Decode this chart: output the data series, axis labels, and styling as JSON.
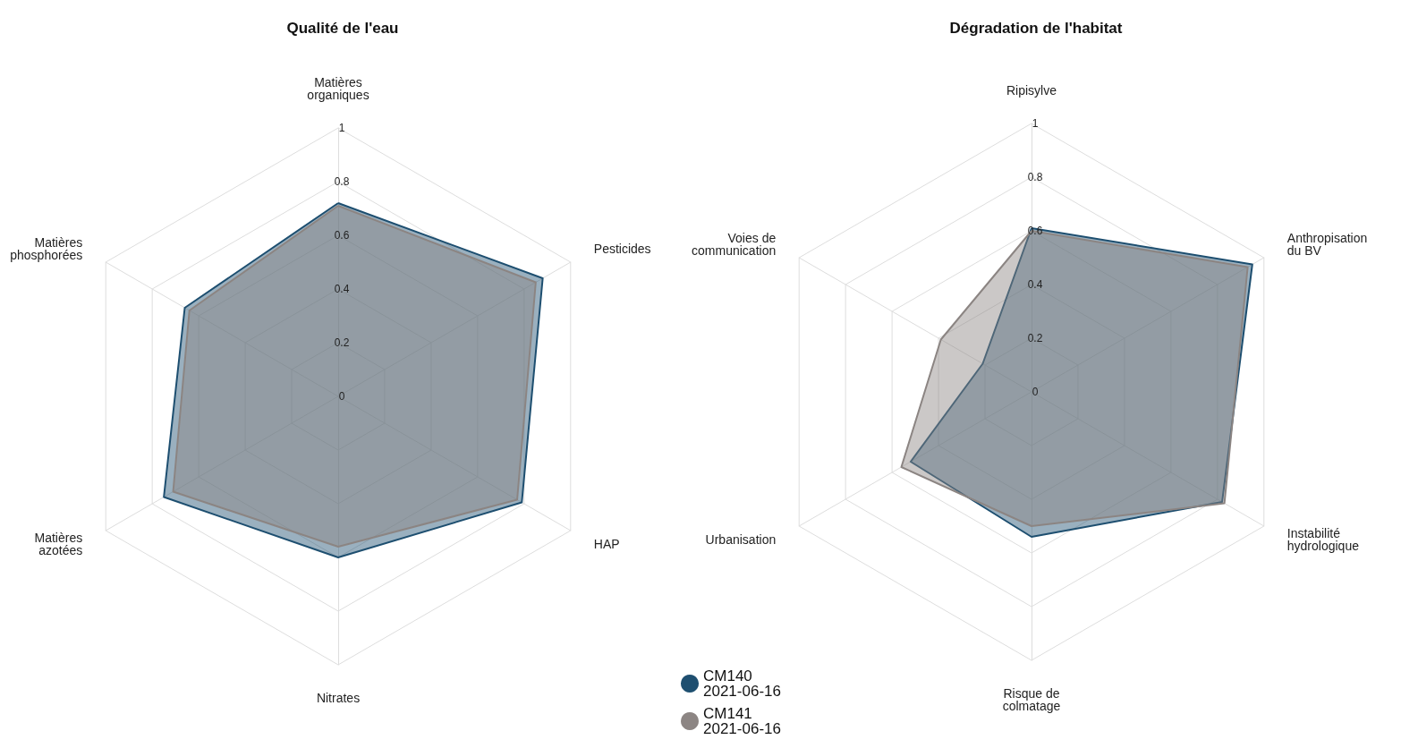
{
  "chart_data": [
    {
      "type": "radar",
      "title": "Qualité de l'eau",
      "categories": [
        "Matières\norganiques",
        "Pesticides",
        "HAP",
        "Nitrates",
        "Matières\nazotées",
        "Matières\nphosphorées"
      ],
      "ylim": [
        0,
        1
      ],
      "yticks": [
        0,
        0.2,
        0.4,
        0.6,
        0.8,
        1
      ],
      "legend": false,
      "series": [
        {
          "color": "#1e4f70",
          "values": [
            0.72,
            0.88,
            0.79,
            0.6,
            0.75,
            0.66
          ]
        },
        {
          "color": "#8c8583",
          "values": [
            0.71,
            0.85,
            0.77,
            0.56,
            0.71,
            0.64
          ]
        }
      ]
    },
    {
      "type": "radar",
      "title": "Dégradation de l'habitat",
      "categories": [
        "Ripisylve",
        "Anthropisation\ndu BV",
        "Instabilité\nhydrologique",
        "Risque de\ncolmatage",
        "Urbanisation",
        "Voies de\ncommunication"
      ],
      "ylim": [
        0,
        1
      ],
      "yticks": [
        0,
        0.2,
        0.4,
        0.6,
        0.8,
        1
      ],
      "legend": "bottom left",
      "series": [
        {
          "name": "CM140\n2021-06-16",
          "color": "#1e4f70",
          "values": [
            0.61,
            0.95,
            0.82,
            0.54,
            0.52,
            0.21
          ]
        },
        {
          "name": "CM141\n2021-06-16",
          "color": "#8c8583",
          "values": [
            0.6,
            0.93,
            0.83,
            0.5,
            0.56,
            0.39
          ]
        }
      ]
    }
  ]
}
